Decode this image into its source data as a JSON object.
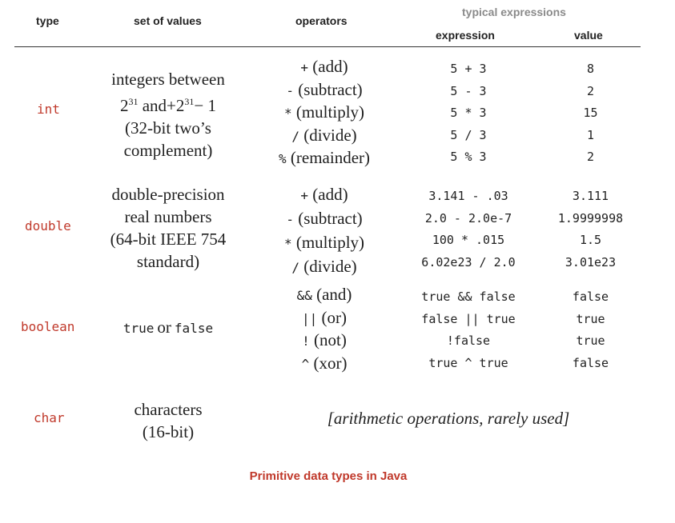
{
  "headers": {
    "type": "type",
    "set_of_values": "set of values",
    "operators": "operators",
    "typical_expressions": "typical expressions",
    "expression": "expression",
    "value": "value"
  },
  "rows": [
    {
      "type": "int",
      "set_lines": [
        "integers between",
        "2",
        "31",
        " and+2",
        "31",
        "− 1",
        "(32-bit two’s",
        "complement)"
      ],
      "operators": [
        {
          "sym": "+",
          "name": "(add)"
        },
        {
          "sym": "-",
          "name": "(subtract)"
        },
        {
          "sym": "*",
          "name": "(multiply)"
        },
        {
          "sym": "/",
          "name": "(divide)"
        },
        {
          "sym": "%",
          "name": "(remainder)"
        }
      ],
      "expressions": [
        "5 + 3",
        "5 - 3",
        "5 * 3",
        "5 / 3",
        "5 % 3"
      ],
      "values": [
        "8",
        "2",
        "15",
        "1",
        "2"
      ]
    },
    {
      "type": "double",
      "set_lines": [
        "double-precision",
        "real numbers",
        "(64-bit IEEE 754",
        "standard)"
      ],
      "operators": [
        {
          "sym": "+",
          "name": "(add)"
        },
        {
          "sym": "-",
          "name": "(subtract)"
        },
        {
          "sym": "*",
          "name": "(multiply)"
        },
        {
          "sym": "/",
          "name": "(divide)"
        }
      ],
      "expressions": [
        "3.141 - .03",
        "2.0 - 2.0e-7",
        "100 * .015",
        "6.02e23 / 2.0"
      ],
      "values": [
        "3.111",
        "1.9999998",
        "1.5",
        "3.01e23"
      ]
    },
    {
      "type": "boolean",
      "set_parts": [
        "true",
        "or",
        "false"
      ],
      "operators": [
        {
          "sym": "&&",
          "name": "(and)"
        },
        {
          "sym": "||",
          "name": "(or)"
        },
        {
          "sym": "!",
          "name": "(not)"
        },
        {
          "sym": "^",
          "name": "(xor)"
        }
      ],
      "expressions": [
        "true && false",
        "false || true",
        "!false",
        "true ^ true"
      ],
      "values": [
        "false",
        "true",
        "true",
        "false"
      ]
    },
    {
      "type": "char",
      "set_lines": [
        "characters",
        "(16-bit)"
      ],
      "note": "[arithmetic operations, rarely used]"
    }
  ],
  "caption": "Primitive data types in Java"
}
